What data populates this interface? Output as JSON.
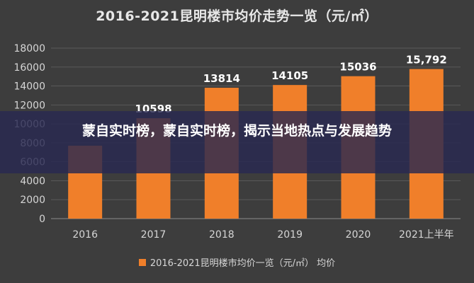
{
  "chart_data": {
    "type": "bar",
    "title": "2016-2021昆明楼市均价走势一览（元/㎡）",
    "categories": [
      "2016",
      "2017",
      "2018",
      "2019",
      "2020",
      "2021上半年"
    ],
    "series": [
      {
        "name": "2016-2021昆明楼市均价一览（元/㎡） 均价",
        "values": [
          7700,
          10598,
          13814,
          14105,
          15036,
          15792
        ],
        "data_labels": [
          "",
          "10598",
          "13814",
          "14105",
          "15036",
          "15,792"
        ]
      }
    ],
    "y_ticks": [
      "0",
      "2000",
      "4000",
      "6000",
      "8000",
      "10000",
      "12000",
      "14000",
      "16000",
      "18000"
    ],
    "ylim": [
      0,
      18000
    ],
    "xlabel": "",
    "ylabel": "",
    "grid": true,
    "legend_position": "bottom",
    "colors": {
      "bar": "#f07f2a",
      "background": "#3d3d3d",
      "grid": "#5a5a5a",
      "axis_text": "#d6d6d6",
      "label_text": "#ffffff",
      "overlay": "#282850"
    }
  },
  "overlay": {
    "text": "蒙自实时榜，蒙自实时榜，揭示当地热点与发展趋势"
  }
}
